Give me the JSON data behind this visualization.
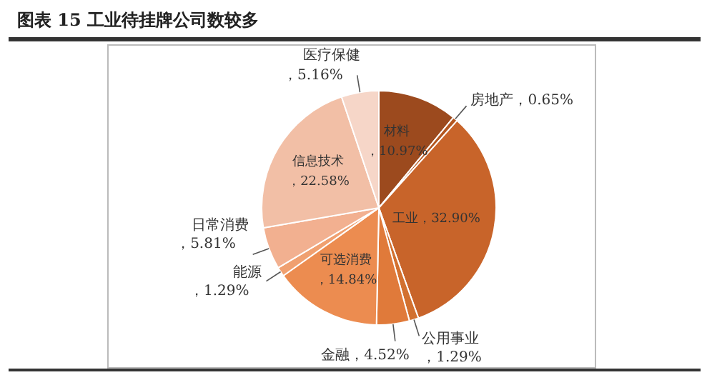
{
  "chart_data": {
    "type": "pie",
    "title": "图表 15 工业待挂牌公司数较多",
    "categories": [
      "材料",
      "房地产",
      "工业",
      "公用事业",
      "金融",
      "可选消费",
      "能源",
      "日常消费",
      "信息技术",
      "医疗保健"
    ],
    "values": [
      10.97,
      0.65,
      32.9,
      1.29,
      4.52,
      14.84,
      1.29,
      5.81,
      22.58,
      5.16
    ],
    "value_labels": [
      "，10.97%",
      "，0.65%",
      "，32.90%",
      "，1.29%",
      "，4.52%",
      "，14.84%",
      "，1.29%",
      "，5.81%",
      "，22.58%",
      "，5.16%"
    ],
    "colors": [
      "#9c4a1e",
      "#b4561f",
      "#c8642a",
      "#d2702f",
      "#e07a3a",
      "#ec8c50",
      "#f0a070",
      "#f2b090",
      "#f2bfa6",
      "#f6d6c8"
    ],
    "legend": false
  }
}
